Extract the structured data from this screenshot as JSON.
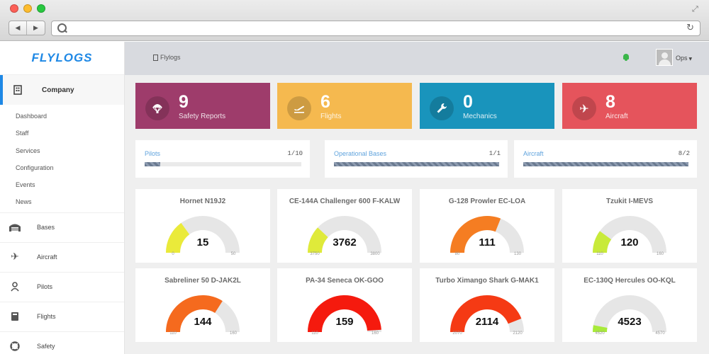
{
  "app": {
    "logo": "FLYLOGS"
  },
  "sidebar": {
    "company": {
      "label": "Company",
      "icon": "building-icon"
    },
    "submenu": [
      "Dashboard",
      "Staff",
      "Services",
      "Configuration",
      "Events",
      "News"
    ],
    "items": [
      {
        "label": "Bases",
        "icon": "hangar-icon"
      },
      {
        "label": "Aircraft",
        "icon": "airplane-icon"
      },
      {
        "label": "Pilots",
        "icon": "pilot-icon"
      },
      {
        "label": "Flights",
        "icon": "logbook-icon"
      },
      {
        "label": "Safety",
        "icon": "lifebuoy-icon"
      }
    ]
  },
  "header": {
    "breadcrumb": "Flylogs",
    "user": "Ops",
    "notification_icon": "android-icon"
  },
  "stats": [
    {
      "value": "9",
      "label": "Safety Reports",
      "color": "#9e3c6b",
      "icon": "parachute-icon"
    },
    {
      "value": "6",
      "label": "Flights",
      "color": "#f5b94f",
      "icon": "takeoff-icon"
    },
    {
      "value": "0",
      "label": "Mechanics",
      "color": "#1994bc",
      "icon": "wrench-icon"
    },
    {
      "value": "8",
      "label": "Aircraft",
      "color": "#e5545c",
      "icon": "airplane-icon"
    }
  ],
  "progress": [
    {
      "label": "Pilots",
      "count": "1/10",
      "fraction": 0.1
    },
    {
      "label": "Operational Bases",
      "count": "1/1",
      "fraction": 1.0
    },
    {
      "label": "Aircraft",
      "count": "8/2",
      "fraction": 1.0
    }
  ],
  "gauges": [
    {
      "title": "Hornet N19J2",
      "value": "15",
      "min": "0",
      "max": "50",
      "fraction": 0.3,
      "color": "#eaea3a"
    },
    {
      "title": "CE-144A Challenger 600 F-KALW",
      "value": "3762",
      "min": "3750",
      "max": "3800",
      "fraction": 0.24,
      "color": "#dfea3a"
    },
    {
      "title": "G-128 Prowler EC-LOA",
      "value": "111",
      "min": "80",
      "max": "130",
      "fraction": 0.62,
      "color": "#f57d22"
    },
    {
      "title": "Tzukit I-MEVS",
      "value": "120",
      "min": "110",
      "max": "160",
      "fraction": 0.2,
      "color": "#c8ea3a"
    },
    {
      "title": "Sabreliner 50 D-JAK2L",
      "value": "144",
      "min": "110",
      "max": "160",
      "fraction": 0.68,
      "color": "#f56a1e"
    },
    {
      "title": "PA-34 Seneca OK-GOO",
      "value": "159",
      "min": "110",
      "max": "160",
      "fraction": 0.98,
      "color": "#f51a0e"
    },
    {
      "title": "Turbo Ximango Shark G-MAK1",
      "value": "2114",
      "min": "2070",
      "max": "2120",
      "fraction": 0.88,
      "color": "#f53a14"
    },
    {
      "title": "EC-130Q Hercules OO-KQL",
      "value": "4523",
      "min": "4520",
      "max": "4570",
      "fraction": 0.06,
      "color": "#a8ea3a"
    }
  ]
}
